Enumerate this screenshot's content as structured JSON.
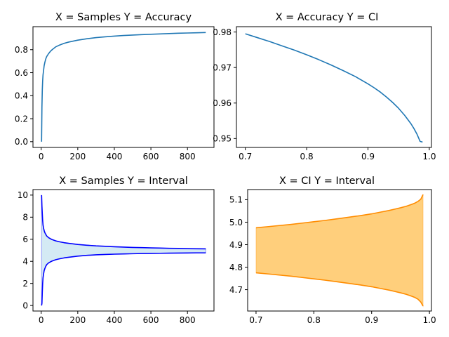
{
  "chart_data": [
    {
      "type": "line",
      "title": "X = Samples  Y = Accuracy",
      "xlabel": "",
      "ylabel": "",
      "xlim": [
        -45,
        945
      ],
      "ylim": [
        -0.05,
        1.0
      ],
      "xticks": [
        0,
        200,
        400,
        600,
        800
      ],
      "yticks": [
        0.0,
        0.2,
        0.4,
        0.6,
        0.8
      ],
      "ytick_labels": [
        "0.0",
        "0.2",
        "0.4",
        "0.6",
        "0.8"
      ],
      "grid": false,
      "colors": {
        "line": "#1f77b4"
      },
      "series": [
        {
          "x": [
            2,
            4,
            6,
            8,
            10,
            13,
            16,
            20,
            25,
            30,
            40,
            50,
            60,
            80,
            100,
            125,
            150,
            200,
            250,
            300,
            350,
            400,
            450,
            500,
            550,
            600,
            650,
            700,
            750,
            800,
            850,
            900
          ],
          "values": [
            0.0,
            0.3,
            0.45,
            0.53,
            0.58,
            0.62,
            0.66,
            0.69,
            0.72,
            0.74,
            0.765,
            0.785,
            0.8,
            0.825,
            0.84,
            0.855,
            0.866,
            0.883,
            0.895,
            0.905,
            0.912,
            0.918,
            0.923,
            0.927,
            0.931,
            0.934,
            0.937,
            0.94,
            0.943,
            0.945,
            0.947,
            0.949
          ]
        }
      ]
    },
    {
      "type": "line",
      "title": "X = Accuracy  Y = CI",
      "xlabel": "",
      "ylabel": "",
      "xlim": [
        0.6855,
        1.0035
      ],
      "ylim": [
        0.9475,
        0.9815
      ],
      "xticks": [
        0.7,
        0.8,
        0.9,
        1.0
      ],
      "xtick_labels": [
        "0.7",
        "0.8",
        "0.9",
        "1.0"
      ],
      "yticks": [
        0.95,
        0.96,
        0.97,
        0.98
      ],
      "ytick_labels": [
        "0.95",
        "0.96",
        "0.97",
        "0.98"
      ],
      "grid": false,
      "colors": {
        "line": "#1f77b4"
      },
      "series": [
        {
          "x": [
            0.7,
            0.72,
            0.74,
            0.76,
            0.78,
            0.8,
            0.82,
            0.84,
            0.86,
            0.88,
            0.9,
            0.91,
            0.92,
            0.93,
            0.94,
            0.95,
            0.96,
            0.97,
            0.975,
            0.98,
            0.985,
            0.989
          ],
          "values": [
            0.9795,
            0.9784,
            0.9773,
            0.9761,
            0.9749,
            0.9736,
            0.9722,
            0.9707,
            0.9691,
            0.9674,
            0.9654,
            0.9643,
            0.9631,
            0.9617,
            0.9602,
            0.9585,
            0.9565,
            0.9542,
            0.9528,
            0.9512,
            0.9492,
            0.949
          ]
        }
      ]
    },
    {
      "type": "area",
      "title": "X = Samples  Y = Interval",
      "xlabel": "",
      "ylabel": "",
      "xlim": [
        -45,
        945
      ],
      "ylim": [
        -0.5,
        10.5
      ],
      "xticks": [
        0,
        200,
        400,
        600,
        800
      ],
      "yticks": [
        0,
        2,
        4,
        6,
        8,
        10
      ],
      "grid": false,
      "colors": {
        "line": "#0000ff",
        "fill": "#d4eaf4"
      },
      "series": [
        {
          "name": "upper",
          "x": [
            2,
            4,
            6,
            8,
            10,
            13,
            16,
            20,
            25,
            30,
            40,
            50,
            60,
            80,
            100,
            125,
            150,
            200,
            250,
            300,
            350,
            400,
            450,
            500,
            550,
            600,
            650,
            700,
            750,
            800,
            850,
            900
          ],
          "values": [
            10.0,
            9.0,
            8.3,
            7.7,
            7.3,
            7.0,
            6.8,
            6.6,
            6.45,
            6.3,
            6.15,
            6.05,
            5.97,
            5.85,
            5.77,
            5.69,
            5.63,
            5.53,
            5.46,
            5.4,
            5.36,
            5.32,
            5.29,
            5.26,
            5.24,
            5.22,
            5.2,
            5.18,
            5.17,
            5.15,
            5.14,
            5.13
          ]
        },
        {
          "name": "lower",
          "x": [
            2,
            4,
            6,
            8,
            10,
            13,
            16,
            20,
            25,
            30,
            40,
            50,
            60,
            80,
            100,
            125,
            150,
            200,
            250,
            300,
            350,
            400,
            450,
            500,
            550,
            600,
            650,
            700,
            750,
            800,
            850,
            900
          ],
          "values": [
            0.0,
            0.2,
            1.2,
            2.0,
            2.5,
            2.85,
            3.15,
            3.35,
            3.55,
            3.7,
            3.85,
            3.95,
            4.03,
            4.15,
            4.23,
            4.31,
            4.37,
            4.47,
            4.54,
            4.59,
            4.62,
            4.65,
            4.67,
            4.69,
            4.71,
            4.72,
            4.73,
            4.74,
            4.75,
            4.76,
            4.77,
            4.77
          ]
        }
      ]
    },
    {
      "type": "area",
      "title": "X = CI  Y = Interval",
      "xlabel": "",
      "ylabel": "",
      "xlim": [
        0.6855,
        1.0035
      ],
      "ylim": [
        4.605,
        5.145
      ],
      "xticks": [
        0.7,
        0.8,
        0.9,
        1.0
      ],
      "xtick_labels": [
        "0.7",
        "0.8",
        "0.9",
        "1.0"
      ],
      "yticks": [
        4.7,
        4.8,
        4.9,
        5.0,
        5.1
      ],
      "ytick_labels": [
        "4.7",
        "4.8",
        "4.9",
        "5.0",
        "5.1"
      ],
      "grid": false,
      "colors": {
        "line": "#ff8c00",
        "fill": "#ffcf7c"
      },
      "series": [
        {
          "name": "upper",
          "x": [
            0.7,
            0.72,
            0.74,
            0.76,
            0.78,
            0.8,
            0.82,
            0.84,
            0.86,
            0.88,
            0.9,
            0.91,
            0.92,
            0.93,
            0.94,
            0.95,
            0.96,
            0.97,
            0.975,
            0.98,
            0.985,
            0.989
          ],
          "values": [
            4.975,
            4.98,
            4.985,
            4.99,
            4.996,
            5.002,
            5.008,
            5.015,
            5.022,
            5.029,
            5.037,
            5.042,
            5.047,
            5.052,
            5.058,
            5.064,
            5.071,
            5.08,
            5.085,
            5.092,
            5.102,
            5.123
          ]
        },
        {
          "name": "lower",
          "x": [
            0.7,
            0.72,
            0.74,
            0.76,
            0.78,
            0.8,
            0.82,
            0.84,
            0.86,
            0.88,
            0.9,
            0.91,
            0.92,
            0.93,
            0.94,
            0.95,
            0.96,
            0.97,
            0.975,
            0.98,
            0.985,
            0.989
          ],
          "values": [
            4.775,
            4.77,
            4.765,
            4.76,
            4.754,
            4.748,
            4.742,
            4.735,
            4.728,
            4.721,
            4.713,
            4.708,
            4.703,
            4.698,
            4.692,
            4.686,
            4.679,
            4.67,
            4.665,
            4.658,
            4.645,
            4.627
          ]
        }
      ]
    }
  ]
}
